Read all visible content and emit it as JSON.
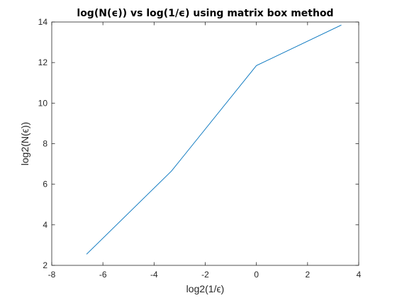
{
  "chart_data": {
    "type": "line",
    "title": "log(N(ϵ)) vs log(1/ϵ) using matrix box method",
    "xlabel": "log2(1/ϵ)",
    "ylabel": "log2(N(ϵ))",
    "xlim": [
      -8,
      4
    ],
    "ylim": [
      2,
      14
    ],
    "xticks": [
      -8,
      -6,
      -4,
      -2,
      0,
      2,
      4
    ],
    "yticks": [
      2,
      4,
      6,
      8,
      10,
      12,
      14
    ],
    "grid": false,
    "series": [
      {
        "color": "#0072bd",
        "x": [
          -6.64,
          -3.32,
          0,
          3.32
        ],
        "y": [
          2.55,
          6.65,
          11.85,
          13.85
        ]
      }
    ]
  },
  "colors": {
    "axis": "#262626",
    "background": "#ffffff"
  }
}
